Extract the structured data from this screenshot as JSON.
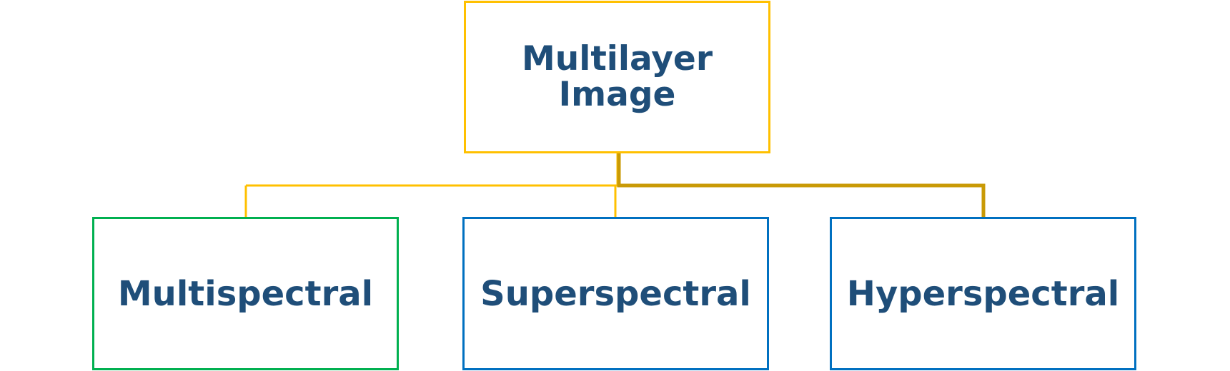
{
  "diagram": {
    "root": {
      "label": "Multilayer\nImage"
    },
    "children": [
      {
        "label": "Multispectral"
      },
      {
        "label": "Superspectral"
      },
      {
        "label": "Hyperspectral"
      }
    ]
  },
  "colors": {
    "text": "#1f4e79",
    "root_border": "#ffc000",
    "connector": "#ffc000",
    "connector_highlight": "#c99a06",
    "multispectral_border": "#00b050",
    "superspectral_border": "#0070c0",
    "hyperspectral_border": "#0070c0"
  }
}
